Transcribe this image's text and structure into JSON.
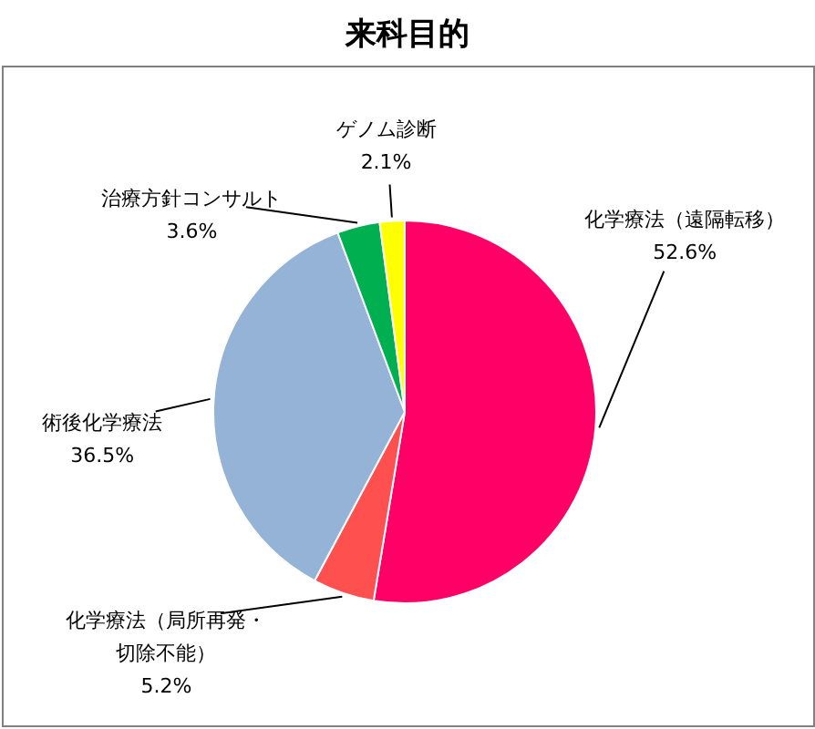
{
  "chart_data": {
    "type": "pie",
    "title": "来科目的",
    "categories": [
      "化学療法（遠隔転移）",
      "化学療法（局所再発・切除不能）",
      "術後化学療法",
      "治療方針コンサルト",
      "ゲノム診断"
    ],
    "values": [
      52.6,
      5.2,
      36.5,
      3.6,
      2.1
    ],
    "value_labels": [
      "52.6%",
      "5.2%",
      "36.5%",
      "3.6%",
      "2.1%"
    ],
    "colors": [
      "#ff0066",
      "#ff5050",
      "#95b3d7",
      "#00b050",
      "#ffff00"
    ]
  }
}
